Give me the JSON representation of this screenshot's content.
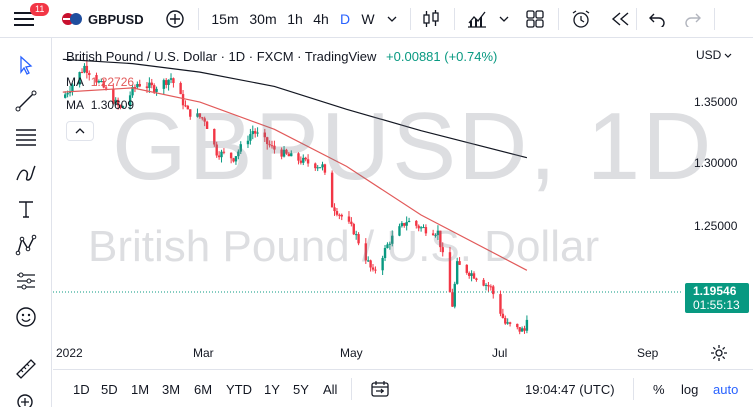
{
  "toolbar": {
    "notification_count": "11",
    "symbol": "GBPUSD",
    "intervals": [
      "15m",
      "30m",
      "1h",
      "4h",
      "D",
      "W"
    ]
  },
  "legend": {
    "title": "British Pound / U.S. Dollar · 1D · FXCM · TradingView",
    "change": "+0.00881 (+0.74%)",
    "ma1_label": "MA",
    "ma1_value": "1.22726",
    "ma2_label": "MA",
    "ma2_value": "1.30609"
  },
  "watermark": {
    "line1": "GBPUSD, 1D",
    "line2": "British Pound / U.S. Dollar"
  },
  "price_scale": {
    "currency": "USD",
    "ticks": [
      "1.35000",
      "1.30000",
      "1.25000"
    ]
  },
  "time_scale": {
    "ticks": [
      "2022",
      "Mar",
      "May",
      "Jul",
      "Sep"
    ]
  },
  "last_price": {
    "value": "1.19546",
    "countdown": "01:55:13"
  },
  "bottom": {
    "ranges": [
      "1D",
      "5D",
      "1M",
      "3M",
      "6M",
      "YTD",
      "1Y",
      "5Y",
      "All"
    ],
    "clock": "19:04:47 (UTC)",
    "percent": "%",
    "log": "log",
    "auto": "auto"
  },
  "colors": {
    "up": "#089981",
    "down": "#f23645",
    "ma_fast": "#e25a5a",
    "ma_slow": "#131722",
    "accent": "#2962ff"
  },
  "chart_data": {
    "type": "candlestick",
    "title": "British Pound / U.S. Dollar",
    "xlabel": "",
    "ylabel": "",
    "ylim": [
      1.175,
      1.385
    ],
    "x_range": [
      "2022-01-01",
      "2022-09-15"
    ],
    "close_points": [
      [
        "2022-01-03",
        1.348
      ],
      [
        "2022-01-12",
        1.37
      ],
      [
        "2022-01-20",
        1.355
      ],
      [
        "2022-01-27",
        1.34
      ],
      [
        "2022-02-03",
        1.358
      ],
      [
        "2022-02-10",
        1.355
      ],
      [
        "2022-02-17",
        1.362
      ],
      [
        "2022-02-24",
        1.338
      ],
      [
        "2022-03-03",
        1.333
      ],
      [
        "2022-03-08",
        1.31
      ],
      [
        "2022-03-15",
        1.306
      ],
      [
        "2022-03-23",
        1.325
      ],
      [
        "2022-03-31",
        1.313
      ],
      [
        "2022-04-07",
        1.307
      ],
      [
        "2022-04-14",
        1.303
      ],
      [
        "2022-04-21",
        1.3
      ],
      [
        "2022-04-25",
        1.273
      ],
      [
        "2022-05-04",
        1.255
      ],
      [
        "2022-05-12",
        1.225
      ],
      [
        "2022-05-19",
        1.248
      ],
      [
        "2022-05-26",
        1.262
      ],
      [
        "2022-06-01",
        1.257
      ],
      [
        "2022-06-08",
        1.254
      ],
      [
        "2022-06-14",
        1.203
      ],
      [
        "2022-06-16",
        1.231
      ],
      [
        "2022-06-23",
        1.224
      ],
      [
        "2022-06-30",
        1.215
      ],
      [
        "2022-07-06",
        1.19
      ],
      [
        "2022-07-11",
        1.186
      ],
      [
        "2022-07-14",
        1.185
      ],
      [
        "2022-07-15",
        1.19546
      ]
    ],
    "ma_fast_label": "MA 1.22726",
    "ma_slow_label": "MA 1.30609",
    "ma_fast_points": [
      [
        "2022-01-03",
        1.352
      ],
      [
        "2022-02-01",
        1.355
      ],
      [
        "2022-03-01",
        1.345
      ],
      [
        "2022-04-01",
        1.326
      ],
      [
        "2022-05-01",
        1.3
      ],
      [
        "2022-06-01",
        1.266
      ],
      [
        "2022-07-15",
        1.22726
      ]
    ],
    "ma_slow_points": [
      [
        "2022-01-03",
        1.375
      ],
      [
        "2022-02-01",
        1.372
      ],
      [
        "2022-03-01",
        1.366
      ],
      [
        "2022-04-01",
        1.356
      ],
      [
        "2022-05-01",
        1.34
      ],
      [
        "2022-06-01",
        1.325
      ],
      [
        "2022-07-15",
        1.30609
      ]
    ],
    "grid": false,
    "legend_position": "top-left"
  }
}
